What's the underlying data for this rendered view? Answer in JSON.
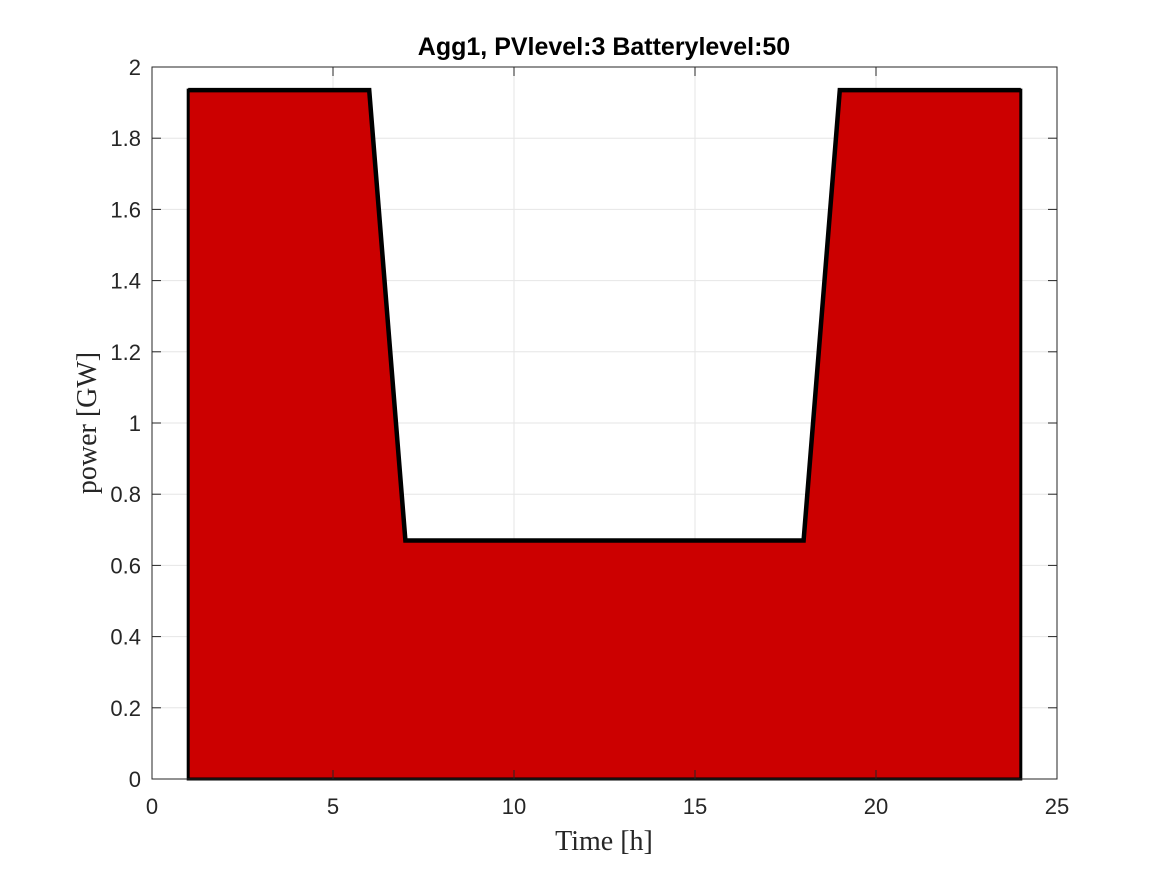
{
  "chart_data": {
    "type": "area",
    "title": "Agg1, PVlevel:3 Batterylevel:50",
    "xlabel": "Time [h]",
    "ylabel": "power [GW]",
    "xlim": [
      0,
      25
    ],
    "ylim": [
      0,
      2
    ],
    "xticks": [
      0,
      5,
      10,
      15,
      20,
      25
    ],
    "yticks": [
      0,
      0.2,
      0.4,
      0.6,
      0.8,
      1,
      1.2,
      1.4,
      1.6,
      1.8,
      2
    ],
    "xtick_labels": [
      "0",
      "5",
      "10",
      "15",
      "20",
      "25"
    ],
    "ytick_labels": [
      "0",
      "0.2",
      "0.4",
      "0.6",
      "0.8",
      "1",
      "1.2",
      "1.4",
      "1.6",
      "1.8",
      "2"
    ],
    "grid": true,
    "series": [
      {
        "x": [
          1,
          2,
          3,
          4,
          5,
          6,
          7,
          8,
          9,
          10,
          11,
          12,
          13,
          14,
          15,
          16,
          17,
          18,
          19,
          20,
          21,
          22,
          23,
          24
        ],
        "values": [
          1.935,
          1.935,
          1.935,
          1.935,
          1.935,
          1.935,
          0.67,
          0.67,
          0.67,
          0.67,
          0.67,
          0.67,
          0.67,
          0.67,
          0.67,
          0.67,
          0.67,
          0.67,
          1.935,
          1.935,
          1.935,
          1.935,
          1.935,
          1.935
        ],
        "fill_color": "#cc0000",
        "edge_color": "#000000"
      }
    ],
    "colors": {
      "grid": "#e6e6e6",
      "axis": "#262626",
      "background": "#ffffff"
    }
  }
}
